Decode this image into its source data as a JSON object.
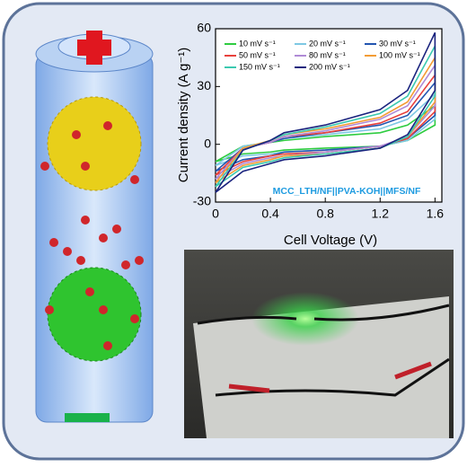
{
  "chart_data": {
    "type": "line",
    "xlabel": "Cell Voltage (V)",
    "ylabel": "Current density (A g⁻¹)",
    "annotation": "MCC_LTH/NF||PVA-KOH||MFS/NF",
    "xlim": [
      0,
      1.65
    ],
    "xticks": [
      0,
      0.4,
      0.8,
      1.2,
      1.6
    ],
    "ylim": [
      -30,
      60
    ],
    "yticks": [
      -30,
      0,
      30,
      60
    ],
    "x": [
      0,
      0.2,
      0.4,
      0.5,
      0.8,
      1.2,
      1.4,
      1.6,
      1.6,
      1.4,
      1.2,
      0.8,
      0.5,
      0.4,
      0.2,
      0
    ],
    "series": [
      {
        "name": "10 mV s⁻¹",
        "color": "#2ecc40",
        "values": [
          -9,
          -1,
          1,
          2,
          4,
          6,
          10,
          20,
          10,
          2,
          -1,
          -2,
          -3,
          -4,
          -5,
          -9
        ]
      },
      {
        "name": "20 mV s⁻¹",
        "color": "#7ec8e3",
        "values": [
          -11,
          -1,
          1,
          3,
          5,
          8,
          13,
          26,
          13,
          2,
          -1,
          -3,
          -4,
          -5,
          -6,
          -11
        ]
      },
      {
        "name": "30 mV s⁻¹",
        "color": "#2255b0",
        "values": [
          -14,
          -2,
          1,
          3,
          6,
          10,
          15,
          32,
          15,
          3,
          -1,
          -3,
          -4,
          -6,
          -8,
          -14
        ]
      },
      {
        "name": "50 mV s⁻¹",
        "color": "#e8413c",
        "values": [
          -16,
          -2,
          1,
          4,
          6,
          11,
          17,
          36,
          17,
          3,
          -1,
          -4,
          -5,
          -6,
          -9,
          -16
        ]
      },
      {
        "name": "80 mV s⁻¹",
        "color": "#b08ad6",
        "values": [
          -18,
          -2,
          1,
          4,
          7,
          13,
          20,
          41,
          20,
          4,
          -1,
          -4,
          -6,
          -7,
          -10,
          -18
        ]
      },
      {
        "name": "100 mV s⁻¹",
        "color": "#f39c34",
        "values": [
          -20,
          -2,
          2,
          5,
          8,
          14,
          22,
          45,
          22,
          4,
          -2,
          -5,
          -6,
          -8,
          -11,
          -20
        ]
      },
      {
        "name": "150 mV s⁻¹",
        "color": "#3cc9b0",
        "values": [
          -22,
          -3,
          2,
          5,
          9,
          16,
          25,
          51,
          25,
          4,
          -2,
          -5,
          -7,
          -9,
          -12,
          -22
        ]
      },
      {
        "name": "200 mV s⁻¹",
        "color": "#1a237e",
        "values": [
          -25,
          -3,
          2,
          6,
          10,
          18,
          28,
          58,
          28,
          5,
          -2,
          -6,
          -8,
          -10,
          -14,
          -25
        ]
      }
    ]
  }
}
